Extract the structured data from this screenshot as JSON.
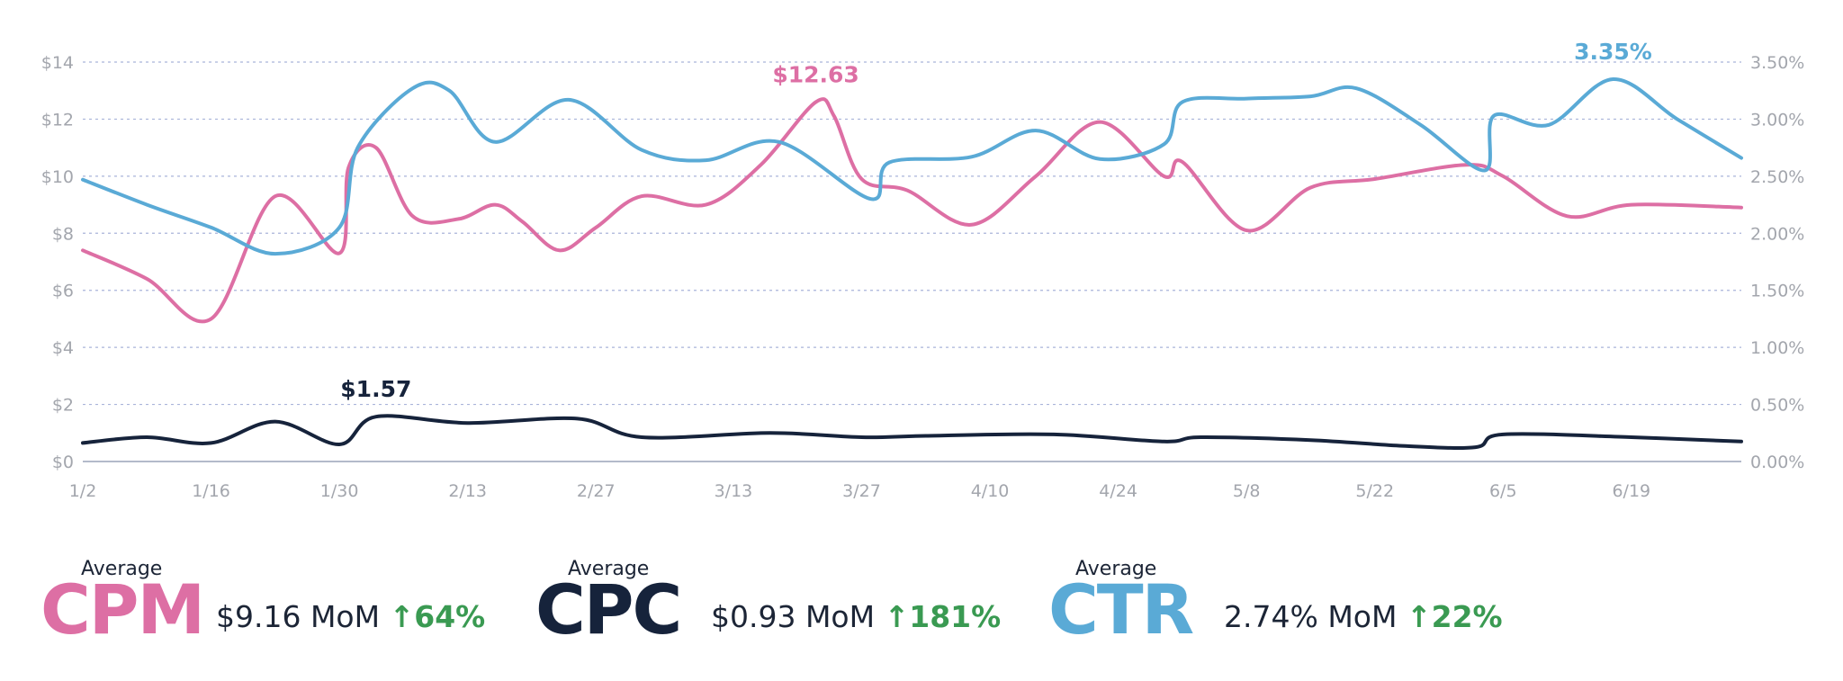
{
  "chart_data": {
    "type": "line",
    "x": [
      "1/2",
      "1/16",
      "1/30",
      "2/13",
      "2/27",
      "3/13",
      "3/27",
      "4/10",
      "4/24",
      "5/8",
      "5/22",
      "6/5",
      "6/19"
    ],
    "y_left_ticks": [
      "$14",
      "$12",
      "$10",
      "$8",
      "$6",
      "$4",
      "$2",
      "$0"
    ],
    "y_right_ticks": [
      "3.50%",
      "3.00%",
      "2.50%",
      "2.00%",
      "1.50%",
      "1.00%",
      "0.50%",
      "0.00%"
    ],
    "ylim_left": [
      0,
      14
    ],
    "ylim_right": [
      0,
      3.5
    ],
    "grid": true,
    "series": [
      {
        "name": "CPM",
        "axis": "left",
        "color": "#dd6fa4",
        "points": [
          [
            "1/2",
            7.4
          ],
          [
            "1/9",
            6.4
          ],
          [
            "1/16",
            5.0
          ],
          [
            "1/23",
            9.3
          ],
          [
            "1/30",
            7.3
          ],
          [
            "1/31",
            10.3
          ],
          [
            "2/3",
            11.0
          ],
          [
            "2/7",
            8.6
          ],
          [
            "2/12",
            8.5
          ],
          [
            "2/16",
            9.0
          ],
          [
            "2/19",
            8.4
          ],
          [
            "2/23",
            7.4
          ],
          [
            "2/27",
            8.2
          ],
          [
            "3/3",
            9.3
          ],
          [
            "3/10",
            9.0
          ],
          [
            "3/16",
            10.4
          ],
          [
            "3/22",
            12.6
          ],
          [
            "3/24",
            12.1
          ],
          [
            "3/27",
            9.9
          ],
          [
            "4/1",
            9.5
          ],
          [
            "4/8",
            8.3
          ],
          [
            "4/15",
            10.0
          ],
          [
            "4/22",
            11.9
          ],
          [
            "4/29",
            10.0
          ],
          [
            "5/1",
            10.5
          ],
          [
            "5/8",
            8.1
          ],
          [
            "5/15",
            9.6
          ],
          [
            "5/22",
            9.9
          ],
          [
            "6/1",
            10.4
          ],
          [
            "6/5",
            10.0
          ],
          [
            "6/12",
            8.6
          ],
          [
            "6/19",
            9.0
          ],
          [
            "7/1",
            8.9
          ]
        ]
      },
      {
        "name": "CPC",
        "axis": "left",
        "color": "#16233b",
        "points": [
          [
            "1/2",
            0.65
          ],
          [
            "1/9",
            0.85
          ],
          [
            "1/16",
            0.65
          ],
          [
            "1/23",
            1.4
          ],
          [
            "1/30",
            0.6
          ],
          [
            "2/3",
            1.57
          ],
          [
            "2/13",
            1.35
          ],
          [
            "2/25",
            1.5
          ],
          [
            "3/3",
            0.85
          ],
          [
            "3/17",
            1.0
          ],
          [
            "3/27",
            0.85
          ],
          [
            "4/3",
            0.9
          ],
          [
            "4/17",
            0.95
          ],
          [
            "4/29",
            0.7
          ],
          [
            "5/3",
            0.85
          ],
          [
            "5/15",
            0.75
          ],
          [
            "5/25",
            0.55
          ],
          [
            "6/2",
            0.5
          ],
          [
            "6/5",
            0.95
          ],
          [
            "6/19",
            0.85
          ],
          [
            "7/1",
            0.7
          ]
        ]
      },
      {
        "name": "CTR",
        "axis": "right",
        "color": "#5aaad6",
        "points": [
          [
            "1/2",
            2.47
          ],
          [
            "1/9",
            2.25
          ],
          [
            "1/16",
            2.05
          ],
          [
            "1/23",
            1.82
          ],
          [
            "1/30",
            2.05
          ],
          [
            "2/1",
            2.75
          ],
          [
            "2/7",
            3.27
          ],
          [
            "2/11",
            3.25
          ],
          [
            "2/16",
            2.8
          ],
          [
            "2/24",
            3.17
          ],
          [
            "3/3",
            2.73
          ],
          [
            "3/10",
            2.64
          ],
          [
            "3/18",
            2.8
          ],
          [
            "3/28",
            2.3
          ],
          [
            "3/30",
            2.62
          ],
          [
            "4/8",
            2.67
          ],
          [
            "4/15",
            2.9
          ],
          [
            "4/22",
            2.65
          ],
          [
            "4/29",
            2.78
          ],
          [
            "5/1",
            3.15
          ],
          [
            "5/8",
            3.18
          ],
          [
            "5/15",
            3.2
          ],
          [
            "5/20",
            3.27
          ],
          [
            "5/27",
            2.95
          ],
          [
            "6/3",
            2.55
          ],
          [
            "6/4",
            3.03
          ],
          [
            "6/10",
            2.95
          ],
          [
            "6/17",
            3.35
          ],
          [
            "6/24",
            3.0
          ],
          [
            "7/1",
            2.66
          ]
        ]
      }
    ],
    "annotations": [
      {
        "series": "CPM",
        "x": "3/22",
        "label": "$12.63"
      },
      {
        "series": "CPC",
        "x": "2/3",
        "label": "$1.57"
      },
      {
        "series": "CTR",
        "x": "6/17",
        "label": "3.35%"
      }
    ]
  },
  "summary": [
    {
      "avg_label": "Average",
      "metric": "CPM",
      "value": "$9.16 MoM",
      "change": "↑64%",
      "color": "#dd6fa4"
    },
    {
      "avg_label": "Average",
      "metric": "CPC",
      "value": "$0.93 MoM",
      "change": "↑181%",
      "color": "#16233b"
    },
    {
      "avg_label": "Average",
      "metric": "CTR",
      "value": "2.74% MoM",
      "change": "↑22%",
      "color": "#5aaad6"
    }
  ],
  "change_color": "#3a9a52"
}
